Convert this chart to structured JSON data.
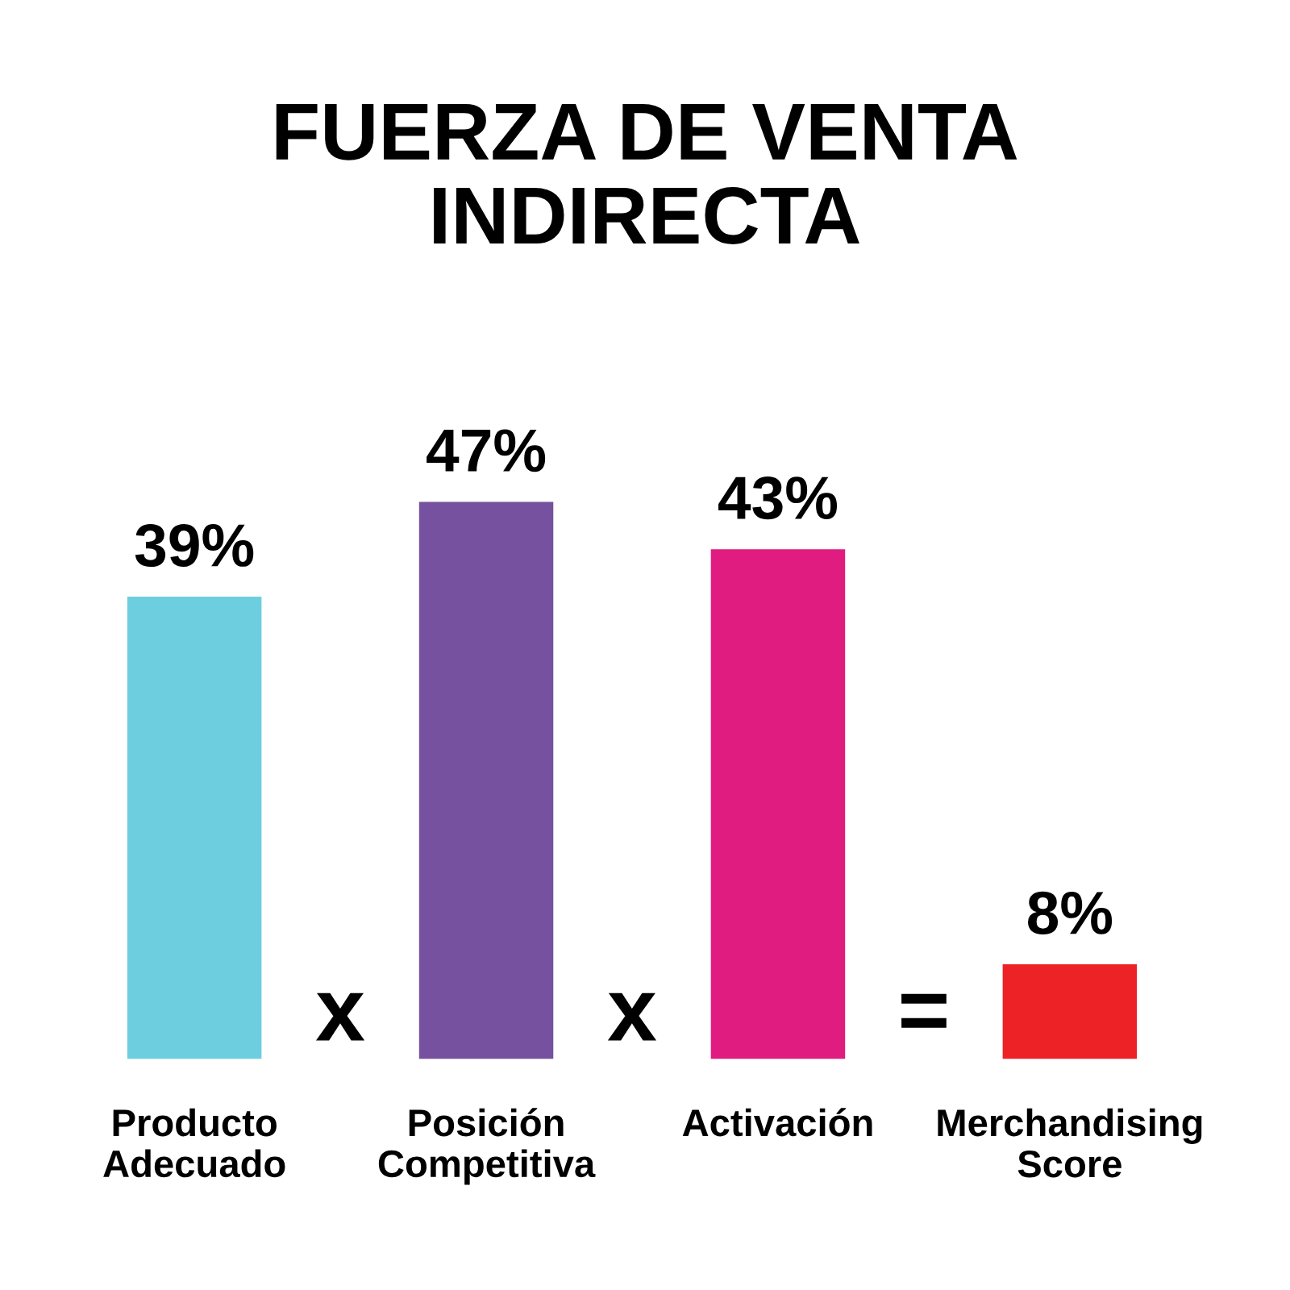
{
  "chart_data": {
    "type": "bar",
    "title": "FUERZA DE VENTA\nINDIRECTA",
    "categories": [
      "Producto\nAdecuado",
      "Posición\nCompetitiva",
      "Activación",
      "Merchandising\nScore"
    ],
    "values": [
      39,
      47,
      43,
      8
    ],
    "colors": [
      "#6dcee0",
      "#76519f",
      "#e01c80",
      "#ed2226"
    ],
    "value_labels": [
      "39%",
      "47%",
      "43%",
      "8%"
    ],
    "annotations": [
      "x",
      "x",
      "="
    ]
  }
}
